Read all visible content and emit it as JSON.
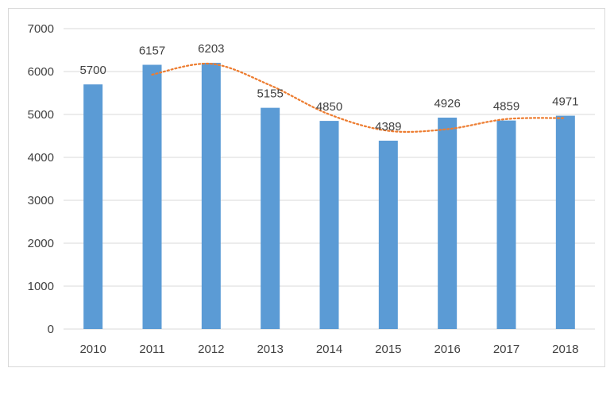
{
  "chart_data": {
    "type": "bar",
    "title": "",
    "xlabel": "",
    "ylabel": "",
    "categories": [
      "2010",
      "2011",
      "2012",
      "2013",
      "2014",
      "2015",
      "2016",
      "2017",
      "2018"
    ],
    "series": [
      {
        "name": "Values",
        "values": [
          5700,
          6157,
          6203,
          5155,
          4850,
          4389,
          4926,
          4859,
          4971
        ],
        "color": "#5b9bd5",
        "data_labels": [
          "5700",
          "6157",
          "6203",
          "5155",
          "4850",
          "4389",
          "4926",
          "4859",
          "4971"
        ]
      }
    ],
    "trendline": {
      "type": "moving-average",
      "period": 2,
      "style": "dotted",
      "color": "#ed7d31"
    },
    "ylim": [
      0,
      7000
    ],
    "yticks": [
      0,
      1000,
      2000,
      3000,
      4000,
      5000,
      6000,
      7000
    ],
    "ytick_labels": [
      "0",
      "1000",
      "2000",
      "3000",
      "4000",
      "5000",
      "6000",
      "7000"
    ],
    "grid": true,
    "legend": "none",
    "colors": {
      "grid": "#d9d9d9",
      "text": "#404040"
    }
  }
}
